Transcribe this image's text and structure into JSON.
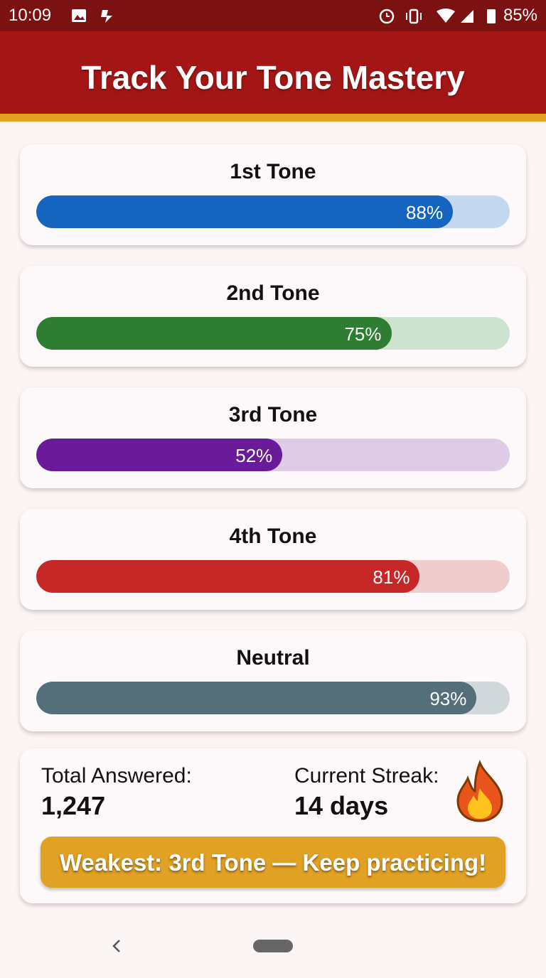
{
  "status_bar": {
    "time": "10:09",
    "battery": "85%"
  },
  "header": {
    "title": "Track Your Tone Mastery"
  },
  "tones": [
    {
      "name": "1st Tone",
      "value": 88,
      "value_label": "88%",
      "color": "#1565c0",
      "track_color": "#c4d9ef"
    },
    {
      "name": "2nd Tone",
      "value": 75,
      "value_label": "75%",
      "color": "#2e7d32",
      "track_color": "#cde2cf"
    },
    {
      "name": "3rd Tone",
      "value": 52,
      "value_label": "52%",
      "color": "#6a1b9a",
      "track_color": "#dfcbe6"
    },
    {
      "name": "4th Tone",
      "value": 81,
      "value_label": "81%",
      "color": "#c62828",
      "track_color": "#f1cccc"
    },
    {
      "name": "Neutral",
      "value": 93,
      "value_label": "93%",
      "color": "#546e7a",
      "track_color": "#d0d8dc"
    }
  ],
  "stats": {
    "total_label": "Total Answered:",
    "total": "1,247",
    "streak_label": "Current Streak:",
    "streak": "14 days"
  },
  "banner": "Weakest: 3rd Tone — Keep practicing!"
}
